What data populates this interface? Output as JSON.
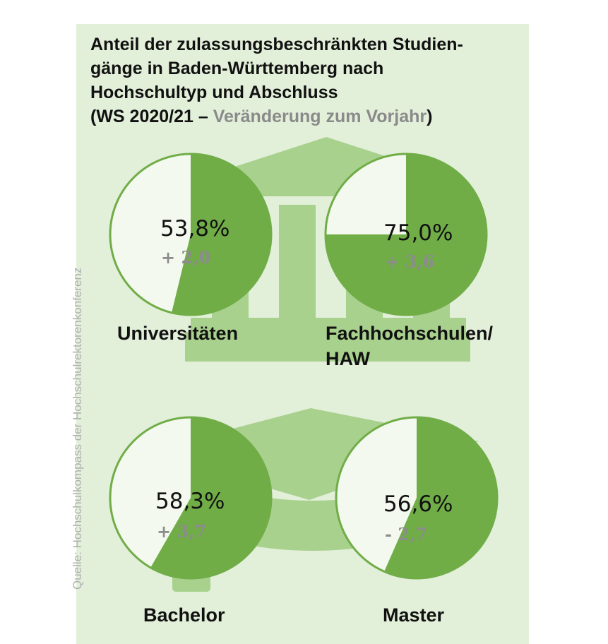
{
  "title": {
    "line1": "Anteil der zulassungsbeschränkten Studien-",
    "line2": "gänge in Baden-Württemberg nach",
    "line3": "Hochschultyp und Abschluss",
    "line4_open": "(WS 2020/21 – ",
    "line4_grey": "Veränderung zum Vorjahr",
    "line4_close": ")"
  },
  "source": "Quelle: Hochschulkompass der Hochschulrektorenkonferenz",
  "colors": {
    "background": "#e2efd9",
    "slice": "#70ad47",
    "pie_base": "#f4f9ef",
    "pie_border": "#70ad47",
    "icon": "#a9d18e",
    "change_text": "#8c8c8c"
  },
  "chart_data": [
    {
      "type": "pie",
      "label": "Universitäten",
      "value_percent": 53.8,
      "value_text": "53,8%",
      "change": 2.0,
      "change_text": "+ 2,0"
    },
    {
      "type": "pie",
      "label": "Fachhochschulen/ HAW",
      "label_line1": "Fachhochschulen/",
      "label_line2": "HAW",
      "value_percent": 75.0,
      "value_text": "75,0%",
      "change": 3.6,
      "change_text": "+ 3,6"
    },
    {
      "type": "pie",
      "label": "Bachelor",
      "value_percent": 58.3,
      "value_text": "58,3%",
      "change": 3.7,
      "change_text": "+ 3,7"
    },
    {
      "type": "pie",
      "label": "Master",
      "value_percent": 56.6,
      "value_text": "56,6%",
      "change": -2.7,
      "change_text": "- 2,7"
    }
  ]
}
